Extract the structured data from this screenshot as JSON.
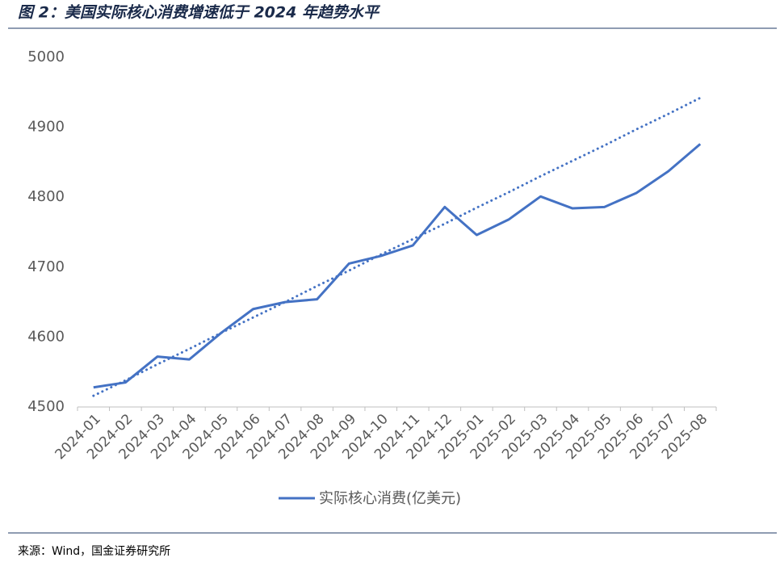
{
  "chart_data": {
    "type": "line",
    "title": "图 2：美国实际核心消费增速低于 2024 年趋势水平",
    "source": "来源：Wind，国金证券研究所",
    "categories": [
      "2024-01",
      "2024-02",
      "2024-03",
      "2024-04",
      "2024-05",
      "2024-06",
      "2024-07",
      "2024-08",
      "2024-09",
      "2024-10",
      "2024-11",
      "2024-12",
      "2025-01",
      "2025-02",
      "2025-03",
      "2025-04",
      "2025-05",
      "2025-06",
      "2025-07",
      "2025-08"
    ],
    "series": [
      {
        "name": "实际核心消费(亿美元)",
        "color": "#4472c4",
        "style": "solid",
        "values": [
          4528,
          4535,
          4572,
          4568,
          4606,
          4640,
          4650,
          4654,
          4705,
          4716,
          4731,
          4786,
          4746,
          4768,
          4801,
          4784,
          4786,
          4806,
          4837,
          4876
        ]
      },
      {
        "color": "#4472c4",
        "style": "dotted",
        "values": [
          4516,
          4538,
          4561,
          4583,
          4606,
          4628,
          4650,
          4673,
          4695,
          4718,
          4740,
          4762,
          4785,
          4807,
          4830,
          4852,
          4874,
          4897,
          4919,
          4942
        ]
      }
    ],
    "ylim": [
      4500,
      5000
    ],
    "yticks": [
      4500,
      4600,
      4700,
      4800,
      4900,
      5000
    ],
    "grid": false,
    "legend": "bottom"
  }
}
